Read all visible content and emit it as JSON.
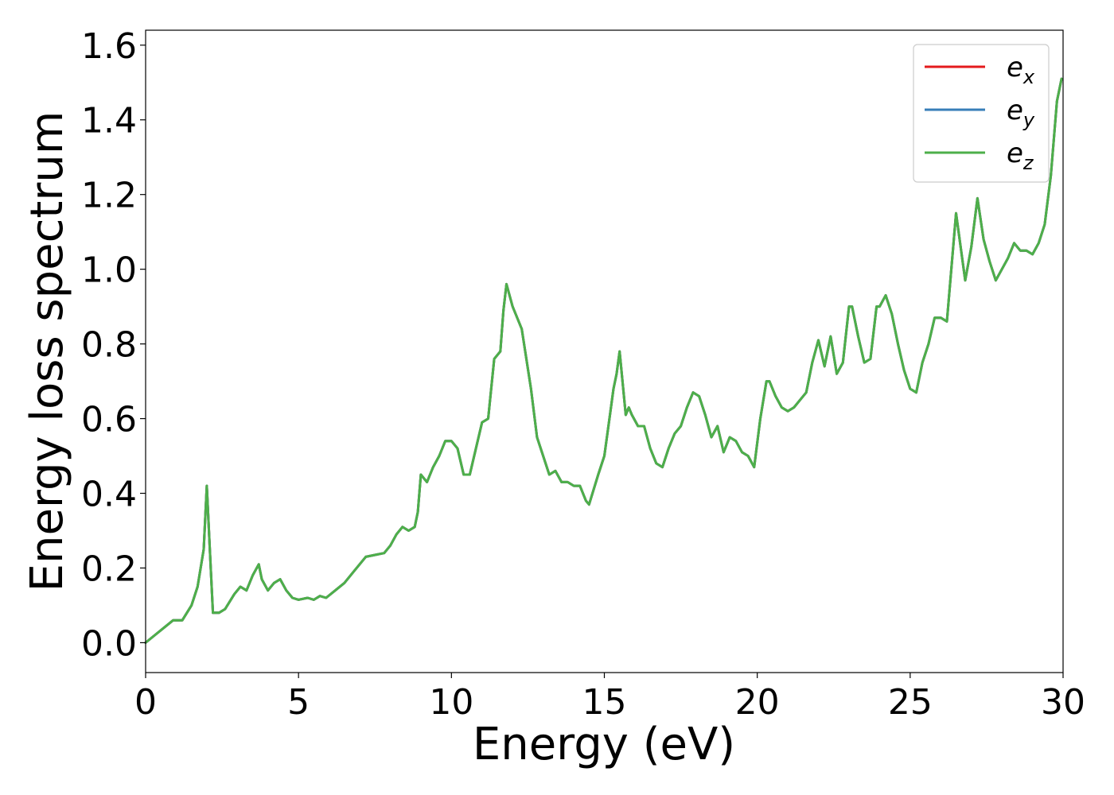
{
  "chart_data": {
    "type": "line",
    "title": "",
    "xlabel": "Energy (eV)",
    "ylabel": "Energy loss spectrum",
    "xlim": [
      0,
      30
    ],
    "ylim": [
      -0.08,
      1.64
    ],
    "xticks": [
      0,
      5,
      10,
      15,
      20,
      25,
      30
    ],
    "xtick_labels": [
      "0",
      "5",
      "10",
      "15",
      "20",
      "25",
      "30"
    ],
    "yticks": [
      0.0,
      0.2,
      0.4,
      0.6,
      0.8,
      1.0,
      1.2,
      1.4,
      1.6
    ],
    "ytick_labels": [
      "0.0",
      "0.2",
      "0.4",
      "0.6",
      "0.8",
      "1.0",
      "1.2",
      "1.4",
      "1.6"
    ],
    "grid": false,
    "legend_position": "top-right",
    "x": [
      0.0,
      0.3,
      0.6,
      0.9,
      1.2,
      1.5,
      1.7,
      1.9,
      2.0,
      2.1,
      2.2,
      2.4,
      2.6,
      2.9,
      3.1,
      3.3,
      3.5,
      3.7,
      3.8,
      4.0,
      4.2,
      4.4,
      4.6,
      4.8,
      5.0,
      5.3,
      5.5,
      5.7,
      5.9,
      6.2,
      6.5,
      6.8,
      7.0,
      7.2,
      7.5,
      7.8,
      8.0,
      8.2,
      8.4,
      8.6,
      8.8,
      8.9,
      9.0,
      9.2,
      9.4,
      9.6,
      9.8,
      10.0,
      10.2,
      10.4,
      10.6,
      10.8,
      11.0,
      11.2,
      11.4,
      11.6,
      11.7,
      11.8,
      12.0,
      12.3,
      12.6,
      12.8,
      13.0,
      13.2,
      13.4,
      13.6,
      13.8,
      14.0,
      14.2,
      14.4,
      14.5,
      14.8,
      15.0,
      15.2,
      15.3,
      15.4,
      15.5,
      15.7,
      15.8,
      15.9,
      16.1,
      16.3,
      16.5,
      16.7,
      16.9,
      17.1,
      17.3,
      17.5,
      17.7,
      17.9,
      18.1,
      18.3,
      18.5,
      18.7,
      18.9,
      19.1,
      19.3,
      19.5,
      19.7,
      19.9,
      20.1,
      20.3,
      20.4,
      20.6,
      20.8,
      21.0,
      21.2,
      21.4,
      21.6,
      21.8,
      22.0,
      22.2,
      22.4,
      22.6,
      22.8,
      23.0,
      23.1,
      23.3,
      23.5,
      23.7,
      23.9,
      24.0,
      24.2,
      24.4,
      24.6,
      24.8,
      25.0,
      25.2,
      25.4,
      25.6,
      25.8,
      26.0,
      26.2,
      26.5,
      26.8,
      27.0,
      27.2,
      27.4,
      27.6,
      27.8,
      28.0,
      28.2,
      28.4,
      28.6,
      28.8,
      29.0,
      29.2,
      29.4,
      29.6,
      29.8,
      29.95
    ],
    "series": [
      {
        "name": "e_x",
        "color": "#e41a1c",
        "values": [
          0.0,
          0.02,
          0.04,
          0.06,
          0.06,
          0.1,
          0.15,
          0.25,
          0.42,
          0.25,
          0.08,
          0.08,
          0.09,
          0.13,
          0.15,
          0.14,
          0.18,
          0.21,
          0.17,
          0.14,
          0.16,
          0.17,
          0.14,
          0.12,
          0.115,
          0.12,
          0.115,
          0.125,
          0.12,
          0.14,
          0.16,
          0.19,
          0.21,
          0.23,
          0.235,
          0.24,
          0.26,
          0.29,
          0.31,
          0.3,
          0.31,
          0.35,
          0.45,
          0.43,
          0.47,
          0.5,
          0.54,
          0.54,
          0.52,
          0.45,
          0.45,
          0.52,
          0.59,
          0.6,
          0.76,
          0.78,
          0.89,
          0.96,
          0.9,
          0.84,
          0.68,
          0.55,
          0.5,
          0.45,
          0.46,
          0.43,
          0.43,
          0.42,
          0.42,
          0.38,
          0.37,
          0.45,
          0.5,
          0.62,
          0.68,
          0.72,
          0.78,
          0.61,
          0.63,
          0.61,
          0.58,
          0.58,
          0.52,
          0.48,
          0.47,
          0.52,
          0.56,
          0.58,
          0.63,
          0.67,
          0.66,
          0.61,
          0.55,
          0.58,
          0.51,
          0.55,
          0.54,
          0.51,
          0.5,
          0.47,
          0.6,
          0.7,
          0.7,
          0.66,
          0.63,
          0.62,
          0.63,
          0.65,
          0.67,
          0.75,
          0.81,
          0.74,
          0.82,
          0.72,
          0.75,
          0.9,
          0.9,
          0.82,
          0.75,
          0.76,
          0.9,
          0.9,
          0.93,
          0.88,
          0.8,
          0.73,
          0.68,
          0.67,
          0.75,
          0.8,
          0.87,
          0.87,
          0.86,
          1.15,
          0.97,
          1.06,
          1.19,
          1.08,
          1.02,
          0.97,
          1.0,
          1.03,
          1.07,
          1.05,
          1.05,
          1.04,
          1.07,
          1.12,
          1.25,
          1.45,
          1.51
        ]
      },
      {
        "name": "e_y",
        "color": "#377eb8",
        "values": [
          0.0,
          0.02,
          0.04,
          0.06,
          0.06,
          0.1,
          0.15,
          0.25,
          0.42,
          0.25,
          0.08,
          0.08,
          0.09,
          0.13,
          0.15,
          0.14,
          0.18,
          0.21,
          0.17,
          0.14,
          0.16,
          0.17,
          0.14,
          0.12,
          0.115,
          0.12,
          0.115,
          0.125,
          0.12,
          0.14,
          0.16,
          0.19,
          0.21,
          0.23,
          0.235,
          0.24,
          0.26,
          0.29,
          0.31,
          0.3,
          0.31,
          0.35,
          0.45,
          0.43,
          0.47,
          0.5,
          0.54,
          0.54,
          0.52,
          0.45,
          0.45,
          0.52,
          0.59,
          0.6,
          0.76,
          0.78,
          0.89,
          0.96,
          0.9,
          0.84,
          0.68,
          0.55,
          0.5,
          0.45,
          0.46,
          0.43,
          0.43,
          0.42,
          0.42,
          0.38,
          0.37,
          0.45,
          0.5,
          0.62,
          0.68,
          0.72,
          0.78,
          0.61,
          0.63,
          0.61,
          0.58,
          0.58,
          0.52,
          0.48,
          0.47,
          0.52,
          0.56,
          0.58,
          0.63,
          0.67,
          0.66,
          0.61,
          0.55,
          0.58,
          0.51,
          0.55,
          0.54,
          0.51,
          0.5,
          0.47,
          0.6,
          0.7,
          0.7,
          0.66,
          0.63,
          0.62,
          0.63,
          0.65,
          0.67,
          0.75,
          0.81,
          0.74,
          0.82,
          0.72,
          0.75,
          0.9,
          0.9,
          0.82,
          0.75,
          0.76,
          0.9,
          0.9,
          0.93,
          0.88,
          0.8,
          0.73,
          0.68,
          0.67,
          0.75,
          0.8,
          0.87,
          0.87,
          0.86,
          1.15,
          0.97,
          1.06,
          1.19,
          1.08,
          1.02,
          0.97,
          1.0,
          1.03,
          1.07,
          1.05,
          1.05,
          1.04,
          1.07,
          1.12,
          1.25,
          1.45,
          1.51
        ]
      },
      {
        "name": "e_z",
        "color": "#4daf4a",
        "values": [
          0.0,
          0.02,
          0.04,
          0.06,
          0.06,
          0.1,
          0.15,
          0.25,
          0.42,
          0.25,
          0.08,
          0.08,
          0.09,
          0.13,
          0.15,
          0.14,
          0.18,
          0.21,
          0.17,
          0.14,
          0.16,
          0.17,
          0.14,
          0.12,
          0.115,
          0.12,
          0.115,
          0.125,
          0.12,
          0.14,
          0.16,
          0.19,
          0.21,
          0.23,
          0.235,
          0.24,
          0.26,
          0.29,
          0.31,
          0.3,
          0.31,
          0.35,
          0.45,
          0.43,
          0.47,
          0.5,
          0.54,
          0.54,
          0.52,
          0.45,
          0.45,
          0.52,
          0.59,
          0.6,
          0.76,
          0.78,
          0.89,
          0.96,
          0.9,
          0.84,
          0.68,
          0.55,
          0.5,
          0.45,
          0.46,
          0.43,
          0.43,
          0.42,
          0.42,
          0.38,
          0.37,
          0.45,
          0.5,
          0.62,
          0.68,
          0.72,
          0.78,
          0.61,
          0.63,
          0.61,
          0.58,
          0.58,
          0.52,
          0.48,
          0.47,
          0.52,
          0.56,
          0.58,
          0.63,
          0.67,
          0.66,
          0.61,
          0.55,
          0.58,
          0.51,
          0.55,
          0.54,
          0.51,
          0.5,
          0.47,
          0.6,
          0.7,
          0.7,
          0.66,
          0.63,
          0.62,
          0.63,
          0.65,
          0.67,
          0.75,
          0.81,
          0.74,
          0.82,
          0.72,
          0.75,
          0.9,
          0.9,
          0.82,
          0.75,
          0.76,
          0.9,
          0.9,
          0.93,
          0.88,
          0.8,
          0.73,
          0.68,
          0.67,
          0.75,
          0.8,
          0.87,
          0.87,
          0.86,
          1.15,
          0.97,
          1.06,
          1.19,
          1.08,
          1.02,
          0.97,
          1.0,
          1.03,
          1.07,
          1.05,
          1.05,
          1.04,
          1.07,
          1.12,
          1.25,
          1.45,
          1.51
        ]
      }
    ],
    "legend": [
      {
        "base": "e",
        "sub": "x",
        "color": "#e41a1c"
      },
      {
        "base": "e",
        "sub": "y",
        "color": "#377eb8"
      },
      {
        "base": "e",
        "sub": "z",
        "color": "#4daf4a"
      }
    ]
  }
}
